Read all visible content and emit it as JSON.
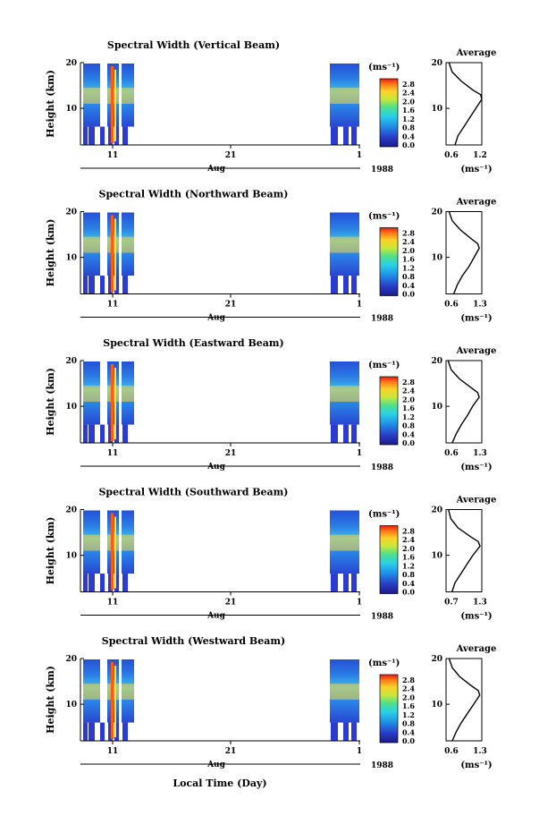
{
  "figure": {
    "xlabel": "Local Time (Day)",
    "month_label": "Aug",
    "year_label": "1988",
    "x_ticks": [
      "11",
      "21",
      "1"
    ],
    "colorbar_unit": "(ms⁻¹)",
    "colorbar_ticks": [
      "2.8",
      "2.4",
      "2.0",
      "1.6",
      "1.2",
      "0.8",
      "0.4",
      "0.0"
    ],
    "ylabel": "Height (km)",
    "y_ticks": [
      "20",
      "10"
    ],
    "average_title": "Average",
    "average_unit": "(ms⁻¹)",
    "colors": {
      "low": "#1a1aa8",
      "mid": "#22c8e0",
      "high": "#ff3b10"
    }
  },
  "chart_data": [
    {
      "type": "heatmap",
      "title": "Spectral Width (Vertical Beam)",
      "ylabel": "Height (km)",
      "xlabel": "Aug",
      "ylim": [
        2,
        20
      ],
      "clim": [
        0.0,
        2.8
      ],
      "profile": {
        "title": "Average",
        "xlabel": "(ms⁻¹)",
        "x_ticks": [
          "0.6",
          "1.2"
        ],
        "xlim": [
          0.6,
          1.2
        ],
        "height": [
          2,
          4,
          6,
          8,
          10,
          12,
          13,
          14,
          16,
          18,
          20
        ],
        "value": [
          0.75,
          0.8,
          0.9,
          1.0,
          1.1,
          1.2,
          1.18,
          1.05,
          0.85,
          0.7,
          0.65
        ]
      }
    },
    {
      "type": "heatmap",
      "title": "Spectral Width (Northward Beam)",
      "ylabel": "Height (km)",
      "xlabel": "Aug",
      "ylim": [
        2,
        20
      ],
      "clim": [
        0.0,
        2.8
      ],
      "profile": {
        "title": "Average",
        "xlabel": "(ms⁻¹)",
        "x_ticks": [
          "0.6",
          "1.3"
        ],
        "xlim": [
          0.6,
          1.3
        ],
        "height": [
          2,
          4,
          6,
          8,
          10,
          12,
          13,
          14,
          16,
          18,
          20
        ],
        "value": [
          0.75,
          0.82,
          0.92,
          1.05,
          1.15,
          1.25,
          1.22,
          1.1,
          0.88,
          0.72,
          0.66
        ]
      }
    },
    {
      "type": "heatmap",
      "title": "Spectral Width (Eastward Beam)",
      "ylabel": "Height (km)",
      "xlabel": "Aug",
      "ylim": [
        2,
        20
      ],
      "clim": [
        0.0,
        2.8
      ],
      "profile": {
        "title": "Average",
        "xlabel": "(ms⁻¹)",
        "x_ticks": [
          "0.6",
          "1.3"
        ],
        "xlim": [
          0.6,
          1.3
        ],
        "height": [
          2,
          4,
          6,
          8,
          10,
          12,
          13,
          14,
          16,
          18,
          20
        ],
        "value": [
          0.72,
          0.8,
          0.9,
          1.02,
          1.12,
          1.25,
          1.22,
          1.1,
          0.86,
          0.7,
          0.64
        ]
      }
    },
    {
      "type": "heatmap",
      "title": "Spectral Width (Southward Beam)",
      "ylabel": "Height (km)",
      "xlabel": "Aug",
      "ylim": [
        2,
        20
      ],
      "clim": [
        0.0,
        2.8
      ],
      "profile": {
        "title": "Average",
        "xlabel": "(ms⁻¹)",
        "x_ticks": [
          "0.7",
          "1.3"
        ],
        "xlim": [
          0.7,
          1.3
        ],
        "height": [
          2,
          4,
          6,
          8,
          10,
          12,
          13,
          14,
          16,
          18,
          20
        ],
        "value": [
          0.8,
          0.85,
          0.95,
          1.05,
          1.15,
          1.27,
          1.24,
          1.12,
          0.9,
          0.78,
          0.74
        ]
      }
    },
    {
      "type": "heatmap",
      "title": "Spectral Width (Westward Beam)",
      "ylabel": "Height (km)",
      "xlabel": "Aug",
      "ylim": [
        2,
        20
      ],
      "clim": [
        0.0,
        2.8
      ],
      "profile": {
        "title": "Average",
        "xlabel": "(ms⁻¹)",
        "x_ticks": [
          "0.6",
          "1.3"
        ],
        "xlim": [
          0.6,
          1.3
        ],
        "height": [
          2,
          4,
          6,
          8,
          10,
          12,
          13,
          14,
          16,
          18,
          20
        ],
        "value": [
          0.72,
          0.8,
          0.9,
          1.02,
          1.14,
          1.26,
          1.23,
          1.1,
          0.87,
          0.72,
          0.66
        ]
      }
    }
  ]
}
